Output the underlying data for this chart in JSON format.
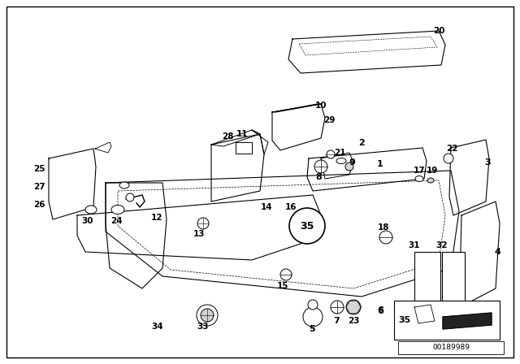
{
  "background_color": "#ffffff",
  "line_color": "#000000",
  "part_number_text": "00189989",
  "figsize": [
    6.4,
    4.48
  ],
  "dpi": 100
}
